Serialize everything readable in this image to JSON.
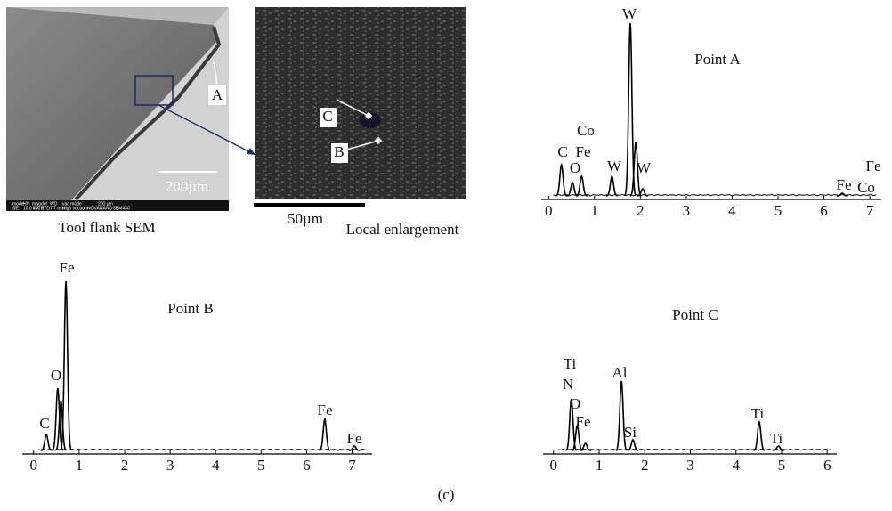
{
  "figure": {
    "caption": "(c)",
    "sem": {
      "point_label": "A",
      "scale_bar": "200µm",
      "caption": "Tool flank SEM",
      "info_bar": [
        "mode",
        "HV",
        "mag",
        "det",
        "WD",
        "vac mode",
        "200 µm",
        "SE",
        "10.0 kV",
        "400 x",
        "ETD",
        "7.7 mm",
        "High vacuum",
        "NOVA",
        "NANOSEM430"
      ]
    },
    "enlargement": {
      "point_labels": [
        "C",
        "B"
      ],
      "scale_bar": "50µm",
      "caption": "Local enlargement"
    },
    "spectra": [
      {
        "title": "Point A",
        "xlim": [
          -0.16,
          7.25
        ],
        "xticks": [
          0,
          1,
          2,
          3,
          4,
          5,
          6,
          7
        ],
        "peaks": [
          {
            "x": 0.28,
            "height": 35
          },
          {
            "x": 0.52,
            "height": 15
          },
          {
            "x": 0.72,
            "height": 22
          },
          {
            "x": 1.38,
            "height": 22
          },
          {
            "x": 1.78,
            "height": 194
          },
          {
            "x": 1.9,
            "height": 60
          },
          {
            "x": 2.05,
            "height": 8
          },
          {
            "x": 6.4,
            "height": 3
          }
        ],
        "labels": [
          "C",
          "Fe",
          "Co",
          "O",
          "W",
          "W",
          "W",
          "Fe",
          "Co",
          "Fe"
        ]
      },
      {
        "title": "Point B",
        "xlim": [
          -0.25,
          7.44
        ],
        "xticks": [
          0,
          1,
          2,
          3,
          4,
          5,
          6,
          7
        ],
        "peaks": [
          {
            "x": 0.28,
            "height": 18
          },
          {
            "x": 0.53,
            "height": 70
          },
          {
            "x": 0.6,
            "height": 55
          },
          {
            "x": 0.71,
            "height": 190
          },
          {
            "x": 6.4,
            "height": 35
          },
          {
            "x": 7.05,
            "height": 5
          }
        ],
        "labels": [
          "Fe",
          "O",
          "C",
          "Fe",
          "Fe"
        ]
      },
      {
        "title": "Point C",
        "xlim": [
          -0.23,
          6.21
        ],
        "xticks": [
          0,
          1,
          2,
          3,
          4,
          5,
          6
        ],
        "peaks": [
          {
            "x": 0.39,
            "height": 58
          },
          {
            "x": 0.52,
            "height": 28
          },
          {
            "x": 0.7,
            "height": 8
          },
          {
            "x": 1.49,
            "height": 78
          },
          {
            "x": 1.74,
            "height": 12
          },
          {
            "x": 4.51,
            "height": 32
          },
          {
            "x": 4.93,
            "height": 5
          }
        ],
        "labels": [
          "Ti",
          "N",
          "O",
          "Fe",
          "Al",
          "Si",
          "Ti",
          "Ti"
        ]
      }
    ]
  }
}
